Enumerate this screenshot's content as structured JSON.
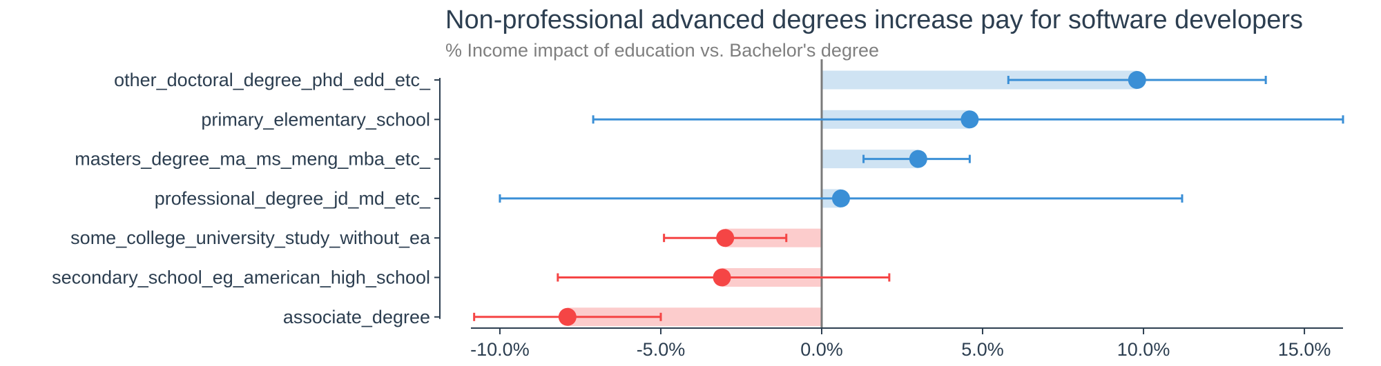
{
  "chart_data": {
    "type": "dot_errorbar",
    "title": "Non-professional advanced degrees increase pay for software developers",
    "subtitle": "% Income impact of education vs. Bachelor's degree",
    "xlabel": "",
    "ylabel": "",
    "xlim": [
      -10.9,
      16.2
    ],
    "x_ticks": [
      -10,
      -5,
      0,
      5,
      10,
      15
    ],
    "x_tick_labels": [
      "-10.0%",
      "-5.0%",
      "0.0%",
      "5.0%",
      "10.0%",
      "15.0%"
    ],
    "reference_line": 0,
    "categories": [
      "other_doctoral_degree_phd_edd_etc_",
      "primary_elementary_school",
      "masters_degree_ma_ms_meng_mba_etc_",
      "professional_degree_jd_md_etc_",
      "some_college_university_study_without_ea",
      "secondary_school_eg_american_high_school",
      "associate_degree"
    ],
    "values": [
      9.8,
      4.6,
      3.0,
      0.6,
      -3.0,
      -3.1,
      -7.9
    ],
    "lower": [
      5.8,
      -7.1,
      1.3,
      -10.0,
      -4.9,
      -8.2,
      -10.8
    ],
    "upper": [
      13.8,
      16.2,
      4.6,
      11.2,
      -1.1,
      2.1,
      -5.0
    ],
    "grid": false,
    "legend": "none",
    "colors": {
      "positive_point": "#3a8fd6",
      "positive_bar": "#cfe3f3",
      "negative_point": "#f54545",
      "negative_bar": "#fccccc",
      "zero_line": "#7a7a7a",
      "axis": "#2c3e50"
    }
  }
}
